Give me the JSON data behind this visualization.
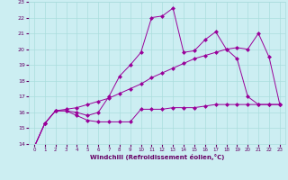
{
  "xlabel": "Windchill (Refroidissement éolien,°C)",
  "xlim": [
    -0.5,
    23.5
  ],
  "ylim": [
    14,
    23
  ],
  "xticks": [
    0,
    1,
    2,
    3,
    4,
    5,
    6,
    7,
    8,
    9,
    10,
    11,
    12,
    13,
    14,
    15,
    16,
    17,
    18,
    19,
    20,
    21,
    22,
    23
  ],
  "yticks": [
    14,
    15,
    16,
    17,
    18,
    19,
    20,
    21,
    22,
    23
  ],
  "bg_color": "#cceef2",
  "grid_color": "#aadddd",
  "line_color": "#990099",
  "xlabel_color": "#660066",
  "tick_color": "#660066",
  "line1_x": [
    0,
    1,
    2,
    3,
    4,
    5,
    6,
    7,
    8,
    9,
    10,
    11,
    12,
    13,
    14,
    15,
    16,
    17,
    18,
    19,
    20,
    21,
    22,
    23
  ],
  "line1_y": [
    13.8,
    15.3,
    16.1,
    16.1,
    15.8,
    15.5,
    15.4,
    15.4,
    15.4,
    15.4,
    16.2,
    16.2,
    16.2,
    16.3,
    16.3,
    16.3,
    16.4,
    16.5,
    16.5,
    16.5,
    16.5,
    16.5,
    16.5,
    16.5
  ],
  "line2_x": [
    0,
    1,
    2,
    3,
    4,
    5,
    6,
    7,
    8,
    9,
    10,
    11,
    12,
    13,
    14,
    15,
    16,
    17,
    18,
    19,
    20,
    21,
    22,
    23
  ],
  "line2_y": [
    13.8,
    15.3,
    16.1,
    16.1,
    16.0,
    15.8,
    16.0,
    17.0,
    18.3,
    19.0,
    19.8,
    22.0,
    22.1,
    22.6,
    19.8,
    19.9,
    20.6,
    21.1,
    20.0,
    19.4,
    17.0,
    16.5,
    16.5,
    16.5
  ],
  "line3_x": [
    0,
    1,
    2,
    3,
    4,
    5,
    6,
    7,
    8,
    9,
    10,
    11,
    12,
    13,
    14,
    15,
    16,
    17,
    18,
    19,
    20,
    21,
    22,
    23
  ],
  "line3_y": [
    13.8,
    15.3,
    16.1,
    16.2,
    16.3,
    16.5,
    16.7,
    16.9,
    17.2,
    17.5,
    17.8,
    18.2,
    18.5,
    18.8,
    19.1,
    19.4,
    19.6,
    19.8,
    20.0,
    20.1,
    20.0,
    21.0,
    19.5,
    16.5
  ],
  "marker_size": 2.5,
  "linewidth": 0.7
}
